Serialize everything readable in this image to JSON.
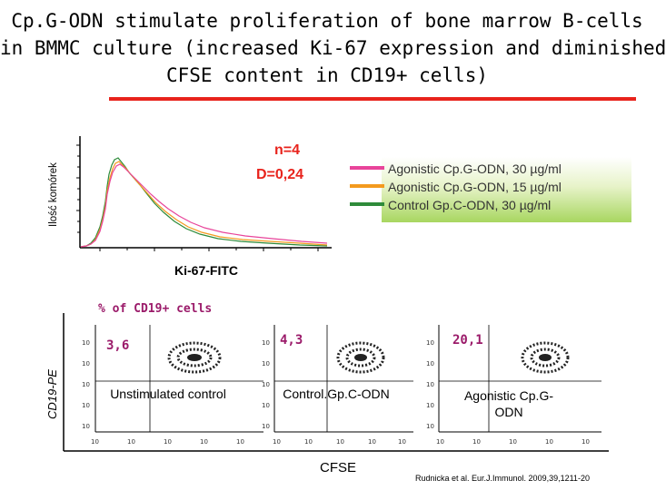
{
  "title": {
    "line1": "Cp.G-ODN stimulate proliferation of bone marrow B-cells",
    "line2": "in BMMC culture (increased Ki-67 expression and diminished",
    "line3": "CFSE content in CD19+ cells)"
  },
  "histogram": {
    "y_axis_label": "Ilość komórek",
    "x_axis_label": "Ki-67-FITC",
    "n_label": "n=4",
    "d_label": "D=0,24",
    "legend": [
      {
        "label": "Agonistic Cp.G-ODN, 30 µg/ml",
        "color": "#e8449a"
      },
      {
        "label": "Agonistic Cp.G-ODN, 15 µg/ml",
        "color": "#f39a1e"
      },
      {
        "label": "Control Gp.C-ODN, 30 µg/ml",
        "color": "#2e8b3a"
      }
    ]
  },
  "dot_plots": {
    "section_label": "% of CD19+ cells",
    "y_axis_label": "CD19-PE",
    "x_axis_label": "CFSE",
    "panels": [
      {
        "value": "3,6",
        "label": "Unstimulated control"
      },
      {
        "value": "4,3",
        "label": "Control.Gp.C-ODN"
      },
      {
        "value": "20,1",
        "label": "Agonistic Cp.G-ODN"
      }
    ]
  },
  "citation": "Rudnicka et al. Eur.J.Immunol. 2009,39,1211-20"
}
